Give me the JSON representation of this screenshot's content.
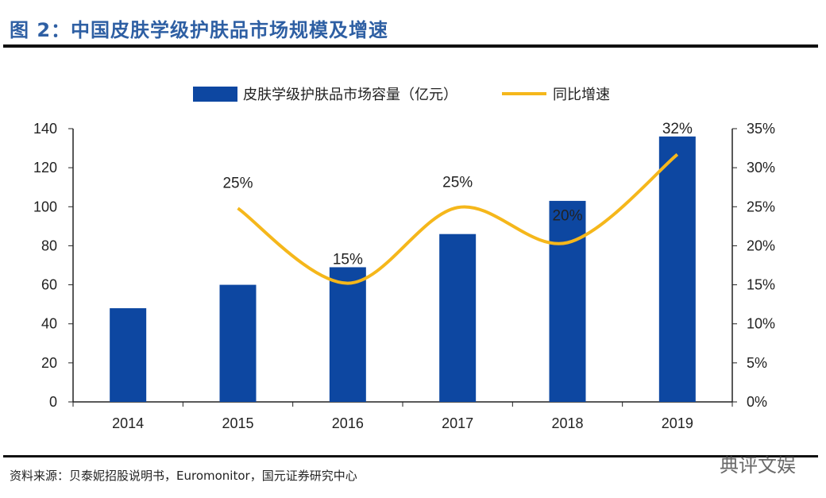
{
  "title": "图 2：中国皮肤学级护肤品市场规模及增速",
  "source": "资料来源：贝泰妮招股说明书，Euromonitor，国元证券研究中心",
  "watermark": "典评文娱",
  "chart_data": {
    "type": "bar+line",
    "categories": [
      "2014",
      "2015",
      "2016",
      "2017",
      "2018",
      "2019"
    ],
    "series": [
      {
        "name": "皮肤学级护肤品市场容量（亿元）",
        "type": "bar",
        "axis": "left",
        "color": "#0d47a1",
        "values": [
          48,
          60,
          69,
          86,
          103,
          136
        ]
      },
      {
        "name": "同比增速",
        "type": "line",
        "axis": "right",
        "color": "#f5b71b",
        "smooth": true,
        "values": [
          null,
          24.8,
          15.2,
          24.9,
          20.4,
          31.7
        ],
        "labels": [
          "",
          "25%",
          "15%",
          "25%",
          "20%",
          "32%"
        ]
      }
    ],
    "ylim_left": [
      0,
      140
    ],
    "yticks_left": [
      "0",
      "20",
      "40",
      "60",
      "80",
      "100",
      "120",
      "140"
    ],
    "ylim_right": [
      0,
      35
    ],
    "yticks_right": [
      "0%",
      "5%",
      "10%",
      "15%",
      "20%",
      "25%",
      "30%",
      "35%"
    ],
    "legend": "top",
    "grid": false
  }
}
